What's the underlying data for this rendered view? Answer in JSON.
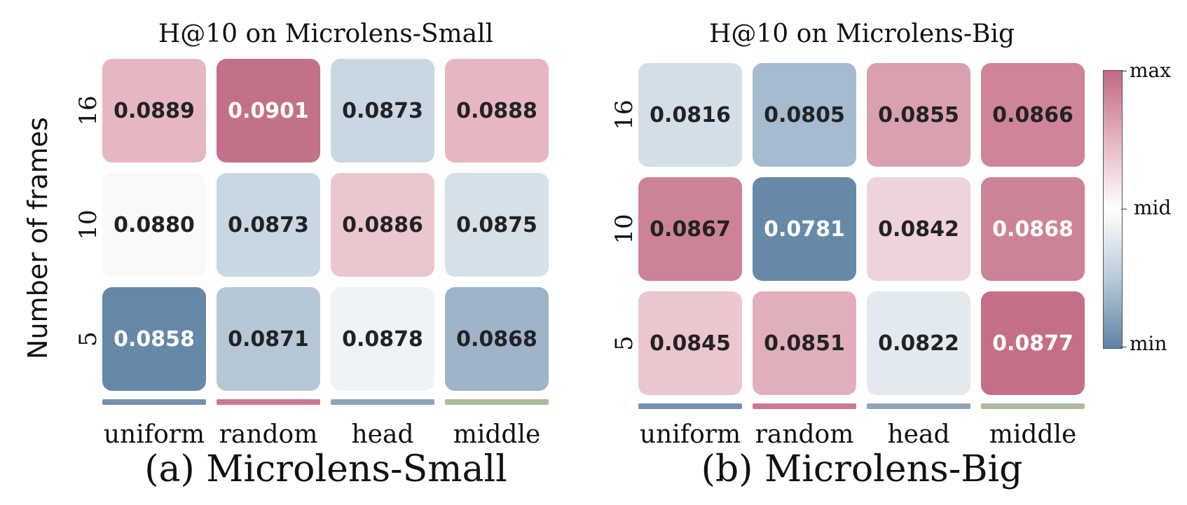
{
  "y_axis_label": "Number of frames",
  "colorbar": {
    "max_label": "max",
    "mid_label": "mid",
    "min_label": "min"
  },
  "panels": [
    {
      "title": "H@10 on Microlens-Small",
      "caption": "(a) Microlens-Small"
    },
    {
      "title": "H@10 on Microlens-Big",
      "caption": "(b) Microlens-Big"
    }
  ],
  "chart_data": [
    {
      "type": "heatmap",
      "title": "H@10 on Microlens-Small",
      "ylabel": "Number of frames",
      "x_categories": [
        "uniform",
        "random",
        "head",
        "middle"
      ],
      "y_categories": [
        "16",
        "10",
        "5"
      ],
      "values": [
        [
          "0.0889",
          "0.0901",
          "0.0873",
          "0.0888"
        ],
        [
          "0.0880",
          "0.0873",
          "0.0886",
          "0.0875"
        ],
        [
          "0.0858",
          "0.0871",
          "0.0878",
          "0.0868"
        ]
      ],
      "cell_colors": [
        [
          "#e6b7c3",
          "#c37188",
          "#c9d7e2",
          "#e6b7c3"
        ],
        [
          "#fbf8f9",
          "#c9d7e2",
          "#ebc6cf",
          "#d5e0e9"
        ],
        [
          "#6688a8",
          "#b6c8d7",
          "#eff3f6",
          "#9db4c9"
        ]
      ],
      "text_colors": [
        [
          "#222222",
          "#ffffff",
          "#222222",
          "#222222"
        ],
        [
          "#222222",
          "#222222",
          "#222222",
          "#222222"
        ],
        [
          "#ffffff",
          "#222222",
          "#222222",
          "#222222"
        ]
      ],
      "column_bar_colors": [
        "#7390b0",
        "#c97a90",
        "#8ea4ba",
        "#a9bb9d"
      ]
    },
    {
      "type": "heatmap",
      "title": "H@10 on Microlens-Big",
      "x_categories": [
        "uniform",
        "random",
        "head",
        "middle"
      ],
      "y_categories": [
        "16",
        "10",
        "5"
      ],
      "values": [
        [
          "0.0816",
          "0.0805",
          "0.0855",
          "0.0866"
        ],
        [
          "0.0867",
          "0.0781",
          "0.0842",
          "0.0868"
        ],
        [
          "0.0845",
          "0.0851",
          "0.0822",
          "0.0877"
        ]
      ],
      "cell_colors": [
        [
          "#d2dee8",
          "#a5bbcf",
          "#d9a0b0",
          "#cf8499"
        ],
        [
          "#cd8397",
          "#6789a8",
          "#efd3da",
          "#cd8397"
        ],
        [
          "#ebc6cf",
          "#e1afbc",
          "#e2e9ef",
          "#c46f87"
        ]
      ],
      "text_colors": [
        [
          "#222222",
          "#222222",
          "#222222",
          "#222222"
        ],
        [
          "#222222",
          "#ffffff",
          "#222222",
          "#ffffff"
        ],
        [
          "#222222",
          "#222222",
          "#222222",
          "#ffffff"
        ]
      ],
      "column_bar_colors": [
        "#7390b0",
        "#c97a90",
        "#8ea4ba",
        "#a9bb9d"
      ]
    }
  ]
}
